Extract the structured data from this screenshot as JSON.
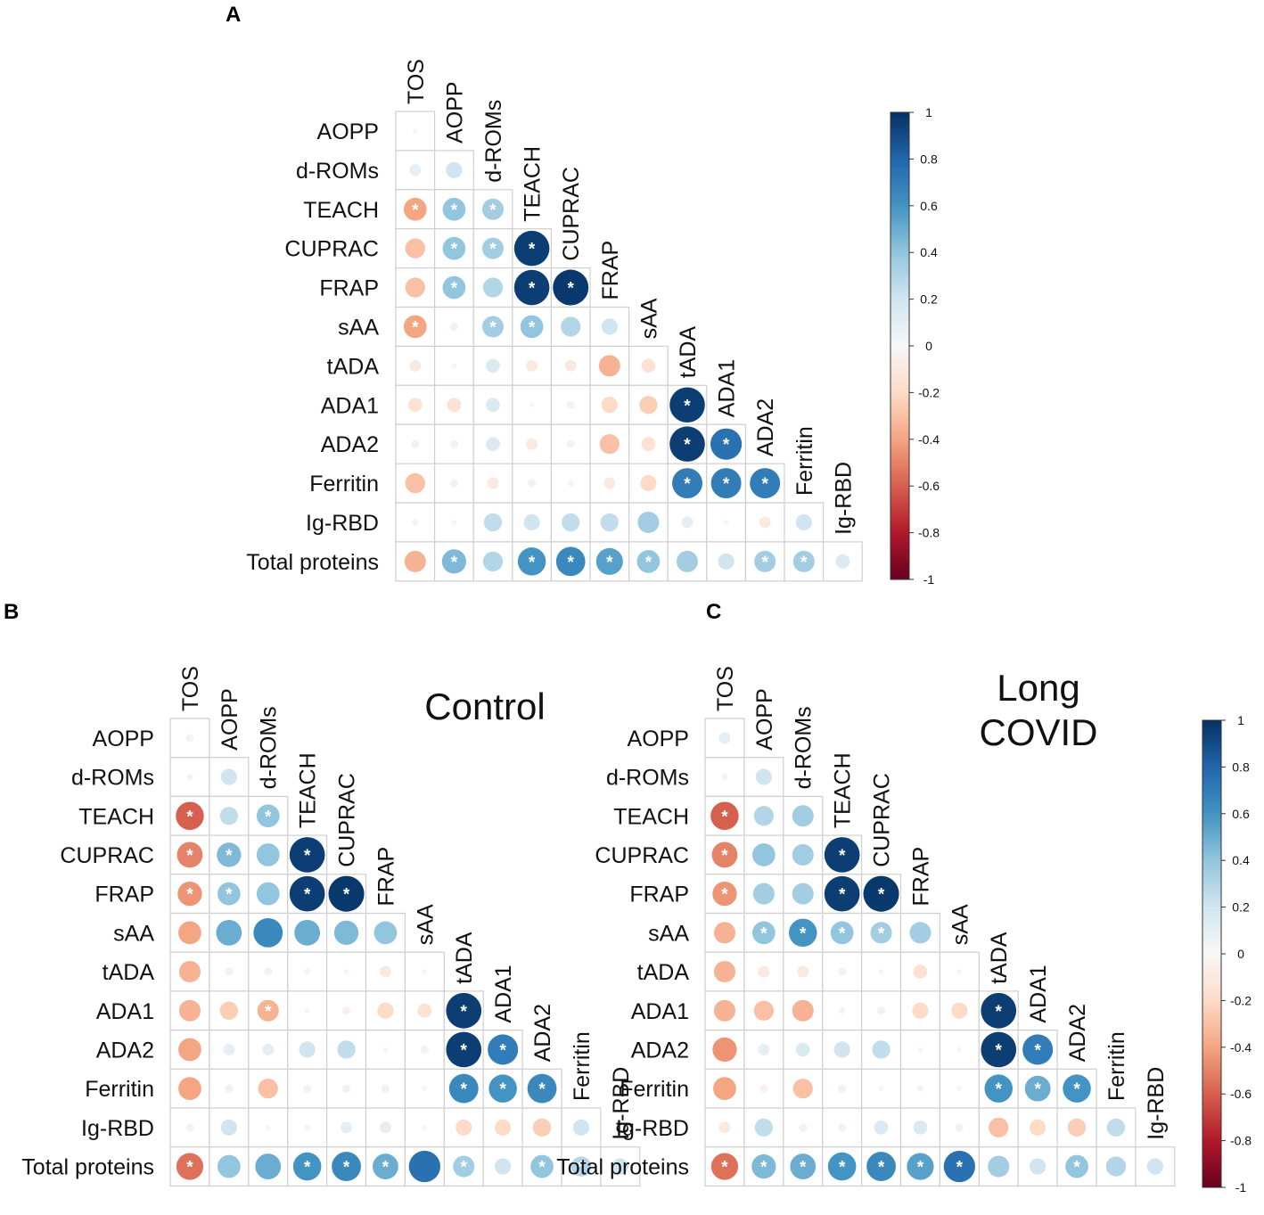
{
  "labels": {
    "panel_a": "A",
    "panel_b": "B",
    "panel_c": "C",
    "title_b": "Control",
    "title_c_line1": "Long",
    "title_c_line2": "COVID",
    "star": "*"
  },
  "colors": {
    "strong_positive": "#053061",
    "positive": "#4393c3",
    "neutral": "#f7f7f7",
    "negative": "#d6604d",
    "strong_negative": "#67001f",
    "grid": "#cfcfcf"
  },
  "chart_data": [
    {
      "id": "A",
      "type": "heatmap",
      "subtype": "correlation-circles-lower-triangle",
      "title": "",
      "columns": [
        "TOS",
        "AOPP",
        "d-ROMs",
        "TEACH",
        "CUPRAC",
        "FRAP",
        "sAA",
        "tADA",
        "ADA1",
        "ADA2",
        "Ferritin",
        "Ig-RBD"
      ],
      "rows": [
        "AOPP",
        "d-ROMs",
        "TEACH",
        "CUPRAC",
        "FRAP",
        "sAA",
        "tADA",
        "ADA1",
        "ADA2",
        "Ferritin",
        "Ig-RBD",
        "Total proteins"
      ],
      "matrix": [
        [
          0.02
        ],
        [
          0.1,
          0.2
        ],
        [
          -0.4,
          0.4,
          0.35
        ],
        [
          -0.3,
          0.4,
          0.35,
          0.95
        ],
        [
          -0.3,
          0.4,
          0.3,
          0.95,
          0.97
        ],
        [
          -0.4,
          0.05,
          0.35,
          0.4,
          0.3,
          0.2
        ],
        [
          -0.1,
          0.02,
          0.15,
          -0.1,
          -0.1,
          -0.35,
          -0.15
        ],
        [
          -0.15,
          -0.15,
          0.15,
          0.02,
          -0.05,
          -0.2,
          -0.25,
          0.95
        ],
        [
          -0.05,
          -0.05,
          0.15,
          -0.1,
          -0.05,
          -0.3,
          -0.15,
          0.95,
          0.75
        ],
        [
          -0.3,
          -0.05,
          -0.1,
          -0.05,
          -0.03,
          -0.1,
          -0.2,
          0.7,
          0.7,
          0.7
        ],
        [
          0.03,
          0.02,
          0.25,
          0.2,
          0.25,
          0.25,
          0.35,
          0.1,
          0.02,
          -0.1,
          0.2
        ],
        [
          -0.35,
          0.45,
          0.3,
          0.6,
          0.65,
          0.55,
          0.4,
          0.35,
          0.2,
          0.35,
          0.35,
          0.15
        ]
      ],
      "significant": [
        [
          false
        ],
        [
          false,
          false
        ],
        [
          true,
          true,
          true
        ],
        [
          false,
          true,
          true,
          true
        ],
        [
          false,
          true,
          false,
          true,
          true
        ],
        [
          true,
          false,
          true,
          true,
          false,
          false
        ],
        [
          false,
          false,
          false,
          false,
          false,
          false,
          false
        ],
        [
          false,
          false,
          false,
          false,
          false,
          false,
          false,
          true
        ],
        [
          false,
          false,
          false,
          false,
          false,
          false,
          false,
          true,
          true
        ],
        [
          false,
          false,
          false,
          false,
          false,
          false,
          false,
          true,
          true,
          true
        ],
        [
          false,
          false,
          false,
          false,
          false,
          false,
          false,
          false,
          false,
          false,
          false
        ],
        [
          false,
          true,
          false,
          true,
          true,
          true,
          true,
          false,
          false,
          true,
          true,
          false
        ]
      ],
      "colorbar": {
        "range": [
          -1,
          1
        ],
        "ticks": [
          "1",
          "0.8",
          "0.6",
          "0.4",
          "0.2",
          "0",
          "-0.2",
          "-0.4",
          "-0.6",
          "-0.8",
          "-1"
        ]
      }
    },
    {
      "id": "B",
      "type": "heatmap",
      "subtype": "correlation-circles-lower-triangle",
      "title": "Control",
      "columns": [
        "TOS",
        "AOPP",
        "d-ROMs",
        "TEACH",
        "CUPRAC",
        "FRAP",
        "sAA",
        "tADA",
        "ADA1",
        "ADA2",
        "Ferritin",
        "Ig-RBD"
      ],
      "rows": [
        "AOPP",
        "d-ROMs",
        "TEACH",
        "CUPRAC",
        "FRAP",
        "sAA",
        "tADA",
        "ADA1",
        "ADA2",
        "Ferritin",
        "Ig-RBD",
        "Total proteins"
      ],
      "matrix": [
        [
          0.05
        ],
        [
          0.03,
          0.2
        ],
        [
          -0.6,
          0.25,
          0.4
        ],
        [
          -0.5,
          0.45,
          0.4,
          0.95
        ],
        [
          -0.45,
          0.4,
          0.4,
          0.95,
          0.97
        ],
        [
          -0.4,
          0.5,
          0.65,
          0.5,
          0.45,
          0.4
        ],
        [
          -0.35,
          -0.05,
          -0.05,
          -0.03,
          -0.02,
          -0.1,
          -0.02
        ],
        [
          -0.35,
          -0.25,
          -0.35,
          -0.02,
          -0.05,
          -0.2,
          -0.15,
          0.95
        ],
        [
          -0.4,
          0.1,
          0.1,
          0.2,
          0.25,
          0.02,
          0.05,
          0.95,
          0.7
        ],
        [
          -0.4,
          -0.05,
          -0.3,
          0.05,
          -0.05,
          -0.05,
          0.02,
          0.65,
          0.6,
          0.65
        ],
        [
          -0.05,
          0.2,
          0.02,
          -0.03,
          0.1,
          0.1,
          0.02,
          -0.2,
          -0.2,
          -0.25,
          0.2
        ],
        [
          -0.55,
          0.4,
          0.5,
          0.6,
          0.65,
          0.5,
          0.75,
          0.35,
          0.2,
          0.4,
          0.3,
          0.2
        ]
      ],
      "significant": [
        [
          false
        ],
        [
          false,
          false
        ],
        [
          true,
          false,
          true
        ],
        [
          true,
          true,
          false,
          true
        ],
        [
          true,
          true,
          false,
          true,
          true
        ],
        [
          false,
          false,
          false,
          false,
          false,
          false
        ],
        [
          false,
          false,
          false,
          false,
          false,
          false,
          false
        ],
        [
          false,
          false,
          true,
          false,
          false,
          false,
          false,
          true
        ],
        [
          false,
          false,
          false,
          false,
          false,
          false,
          false,
          true,
          true
        ],
        [
          false,
          false,
          false,
          false,
          false,
          false,
          false,
          true,
          true,
          true
        ],
        [
          false,
          false,
          false,
          false,
          false,
          false,
          false,
          false,
          false,
          false,
          false
        ],
        [
          true,
          false,
          false,
          true,
          true,
          true,
          false,
          true,
          false,
          true,
          true,
          false
        ]
      ]
    },
    {
      "id": "C",
      "type": "heatmap",
      "subtype": "correlation-circles-lower-triangle",
      "title": "Long COVID",
      "columns": [
        "TOS",
        "AOPP",
        "d-ROMs",
        "TEACH",
        "CUPRAC",
        "FRAP",
        "sAA",
        "tADA",
        "ADA1",
        "ADA2",
        "Ferritin",
        "Ig-RBD"
      ],
      "rows": [
        "AOPP",
        "d-ROMs",
        "TEACH",
        "CUPRAC",
        "FRAP",
        "sAA",
        "tADA",
        "ADA1",
        "ADA2",
        "Ferritin",
        "Ig-RBD",
        "Total proteins"
      ],
      "matrix": [
        [
          0.1
        ],
        [
          -0.03,
          0.2
        ],
        [
          -0.6,
          0.3,
          0.35
        ],
        [
          -0.5,
          0.4,
          0.35,
          0.95
        ],
        [
          -0.45,
          0.35,
          0.35,
          0.95,
          0.97
        ],
        [
          -0.35,
          0.4,
          0.6,
          0.4,
          0.35,
          0.35
        ],
        [
          -0.35,
          -0.1,
          -0.1,
          -0.05,
          -0.02,
          -0.15,
          -0.02
        ],
        [
          -0.35,
          -0.3,
          -0.35,
          -0.03,
          -0.05,
          -0.2,
          -0.2,
          0.95
        ],
        [
          -0.45,
          0.1,
          0.15,
          0.2,
          0.25,
          0.02,
          0.02,
          0.95,
          0.7
        ],
        [
          -0.4,
          -0.05,
          -0.3,
          0.05,
          -0.02,
          0.03,
          0.02,
          0.6,
          0.5,
          0.6
        ],
        [
          -0.1,
          0.25,
          0.05,
          0.05,
          0.15,
          0.15,
          0.05,
          -0.3,
          -0.2,
          -0.25,
          0.25
        ],
        [
          -0.55,
          0.45,
          0.5,
          0.6,
          0.65,
          0.55,
          0.75,
          0.35,
          0.2,
          0.4,
          0.3,
          0.2
        ]
      ],
      "significant": [
        [
          false
        ],
        [
          false,
          false
        ],
        [
          true,
          false,
          false
        ],
        [
          true,
          false,
          false,
          true
        ],
        [
          true,
          false,
          false,
          true,
          true
        ],
        [
          false,
          true,
          true,
          true,
          true,
          false
        ],
        [
          false,
          false,
          false,
          false,
          false,
          false,
          false
        ],
        [
          false,
          false,
          false,
          false,
          false,
          false,
          false,
          true
        ],
        [
          false,
          false,
          false,
          false,
          false,
          false,
          false,
          true,
          true
        ],
        [
          false,
          false,
          false,
          false,
          false,
          false,
          false,
          true,
          true,
          true
        ],
        [
          false,
          false,
          false,
          false,
          false,
          false,
          false,
          false,
          false,
          false,
          false
        ],
        [
          true,
          true,
          true,
          true,
          true,
          true,
          true,
          false,
          false,
          true,
          false,
          false
        ]
      ],
      "colorbar": {
        "range": [
          -1,
          1
        ],
        "ticks": [
          "1",
          "0.8",
          "0.6",
          "0.4",
          "0.2",
          "0",
          "-0.2",
          "-0.4",
          "-0.6",
          "-0.8",
          "-1"
        ]
      }
    }
  ]
}
